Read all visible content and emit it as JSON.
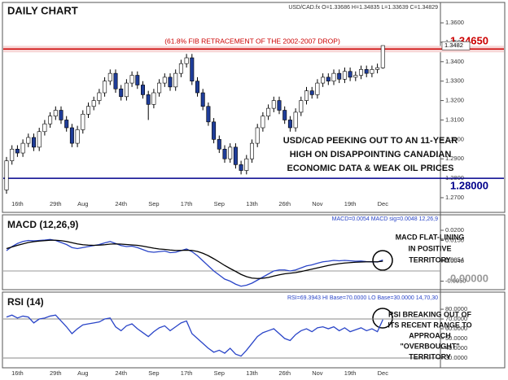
{
  "chart_data": [
    {
      "type": "candlestick",
      "title": "DAILY CHART",
      "header": "USD/CAD.fx O=1.33686 H=1.34835 L=1.33639 C=1.34829",
      "categories": [
        null,
        null,
        "16th",
        null,
        null,
        null,
        null,
        null,
        null,
        "29th",
        null,
        null,
        null,
        null,
        "Aug",
        null,
        null,
        null,
        null,
        null,
        null,
        "24th",
        null,
        null,
        null,
        null,
        null,
        "Sep",
        null,
        null,
        null,
        null,
        null,
        "17th",
        null,
        null,
        null,
        null,
        null,
        "Sep",
        null,
        null,
        null,
        null,
        null,
        "13th",
        null,
        null,
        null,
        null,
        null,
        "26th",
        null,
        null,
        null,
        null,
        null,
        "Nov",
        null,
        null,
        null,
        null,
        null,
        "19th",
        null,
        null,
        null,
        null,
        null,
        "Dec"
      ],
      "open": [
        1.274,
        1.289,
        1.295,
        1.293,
        1.298,
        1.301,
        1.296,
        1.304,
        1.308,
        1.312,
        1.315,
        1.31,
        1.306,
        1.298,
        1.305,
        1.313,
        1.317,
        1.32,
        1.324,
        1.33,
        1.334,
        1.326,
        1.322,
        1.329,
        1.333,
        1.328,
        1.323,
        1.318,
        1.324,
        1.329,
        1.332,
        1.327,
        1.334,
        1.339,
        1.342,
        1.33,
        1.324,
        1.317,
        1.309,
        1.3,
        1.295,
        1.29,
        1.296,
        1.287,
        1.284,
        1.29,
        1.298,
        1.306,
        1.312,
        1.316,
        1.32,
        1.315,
        1.31,
        1.306,
        1.314,
        1.32,
        1.325,
        1.323,
        1.329,
        1.332,
        1.33,
        1.334,
        1.331,
        1.335,
        1.332,
        1.333,
        1.336,
        1.334,
        1.336,
        1.33686
      ],
      "high": [
        1.291,
        1.297,
        1.297,
        1.3,
        1.303,
        1.303,
        1.306,
        1.31,
        1.314,
        1.317,
        1.317,
        1.312,
        1.308,
        1.307,
        1.315,
        1.319,
        1.322,
        1.326,
        1.332,
        1.336,
        1.336,
        1.328,
        1.331,
        1.335,
        1.335,
        1.33,
        1.325,
        1.326,
        1.331,
        1.334,
        1.334,
        1.336,
        1.341,
        1.344,
        1.344,
        1.332,
        1.326,
        1.319,
        1.311,
        1.302,
        1.297,
        1.298,
        1.298,
        1.289,
        1.292,
        1.3,
        1.308,
        1.314,
        1.318,
        1.322,
        1.322,
        1.317,
        1.312,
        1.316,
        1.322,
        1.327,
        1.327,
        1.331,
        1.334,
        1.334,
        1.336,
        1.336,
        1.337,
        1.337,
        1.335,
        1.338,
        1.338,
        1.338,
        1.339,
        1.34835
      ],
      "low": [
        1.272,
        1.287,
        1.291,
        1.291,
        1.296,
        1.294,
        1.294,
        1.302,
        1.306,
        1.31,
        1.308,
        1.304,
        1.296,
        1.296,
        1.303,
        1.311,
        1.315,
        1.318,
        1.322,
        1.328,
        1.324,
        1.32,
        1.32,
        1.327,
        1.326,
        1.321,
        1.31,
        1.316,
        1.322,
        1.327,
        1.325,
        1.325,
        1.332,
        1.337,
        1.328,
        1.322,
        1.315,
        1.307,
        1.298,
        1.293,
        1.288,
        1.288,
        1.285,
        1.282,
        1.282,
        1.288,
        1.296,
        1.304,
        1.31,
        1.314,
        1.313,
        1.308,
        1.304,
        1.304,
        1.312,
        1.318,
        1.321,
        1.321,
        1.327,
        1.328,
        1.328,
        1.329,
        1.329,
        1.33,
        1.33,
        1.331,
        1.332,
        1.332,
        1.334,
        1.33639
      ],
      "close": [
        1.289,
        1.295,
        1.293,
        1.298,
        1.301,
        1.296,
        1.304,
        1.308,
        1.312,
        1.315,
        1.31,
        1.306,
        1.298,
        1.305,
        1.313,
        1.317,
        1.32,
        1.324,
        1.33,
        1.334,
        1.326,
        1.322,
        1.329,
        1.333,
        1.328,
        1.323,
        1.318,
        1.324,
        1.329,
        1.332,
        1.327,
        1.334,
        1.339,
        1.342,
        1.33,
        1.324,
        1.317,
        1.309,
        1.3,
        1.295,
        1.29,
        1.296,
        1.287,
        1.284,
        1.29,
        1.298,
        1.306,
        1.312,
        1.316,
        1.32,
        1.315,
        1.31,
        1.306,
        1.314,
        1.32,
        1.325,
        1.323,
        1.329,
        1.332,
        1.33,
        1.334,
        1.331,
        1.335,
        1.332,
        1.333,
        1.336,
        1.334,
        1.336,
        1.3369,
        1.34829
      ],
      "up_color": "#ffffff",
      "down_color": "#1f3d99",
      "ylim": [
        1.2637,
        1.3684
      ],
      "yticks": [
        {
          "value": 1.27,
          "label": "1.2700"
        },
        {
          "value": 1.28,
          "label": "1.2800"
        },
        {
          "value": 1.29,
          "label": "1.2900"
        },
        {
          "value": 1.3,
          "label": "1.3000"
        },
        {
          "value": 1.31,
          "label": "1.3100"
        },
        {
          "value": 1.32,
          "label": "1.3200"
        },
        {
          "value": 1.33,
          "label": "1.3300"
        },
        {
          "value": 1.34,
          "label": "1.3400"
        },
        {
          "value": 1.35,
          "label": "1.3500"
        },
        {
          "value": 1.36,
          "label": "1.3600"
        }
      ],
      "price_marker": {
        "value": 1.3482,
        "label": "1.3482"
      },
      "levels": [
        {
          "value": 1.3465,
          "label": "1.34650",
          "color": "#cc0000",
          "note": "(61.8% FIB RETRACEMENT OF THE 2002-2007 DROP)"
        },
        {
          "value": 1.28,
          "label": "1.28000",
          "color": "#00008b"
        }
      ],
      "annotation": [
        "USD/CAD PEEKING OUT TO AN 11-YEAR",
        "HIGH ON DISAPPOINTING CANADIAN",
        "ECONOMIC DATA & WEAK OIL PRICES"
      ]
    },
    {
      "type": "line",
      "title": "MACD (12,26,9)",
      "header": "MACD=0.0054 MACD sig=0.0048   12,26,9",
      "series": [
        {
          "name": "MACD",
          "color": "#2a45c8",
          "values": [
            0.01,
            0.012,
            0.0135,
            0.0145,
            0.015,
            0.0148,
            0.015,
            0.0152,
            0.0155,
            0.015,
            0.014,
            0.013,
            0.0115,
            0.011,
            0.0115,
            0.012,
            0.0125,
            0.013,
            0.0138,
            0.0145,
            0.0135,
            0.0125,
            0.012,
            0.0122,
            0.0115,
            0.0105,
            0.0095,
            0.0092,
            0.0095,
            0.0098,
            0.009,
            0.0092,
            0.01,
            0.0108,
            0.0095,
            0.0075,
            0.005,
            0.0025,
            0.0,
            -0.002,
            -0.004,
            -0.005,
            -0.0065,
            -0.0075,
            -0.007,
            -0.006,
            -0.0045,
            -0.003,
            -0.0015,
            0.0,
            0.0005,
            0.0005,
            0.0,
            0.0005,
            0.0015,
            0.0025,
            0.003,
            0.0038,
            0.0045,
            0.0048,
            0.0052,
            0.005,
            0.0052,
            0.005,
            0.0048,
            0.0049,
            0.0046,
            0.0045,
            0.0044,
            0.0054
          ]
        },
        {
          "name": "MACD sig",
          "color": "#000000",
          "values": [
            0.011,
            0.0118,
            0.0126,
            0.0133,
            0.014,
            0.0144,
            0.0147,
            0.0149,
            0.0151,
            0.0151,
            0.0149,
            0.0145,
            0.0139,
            0.0133,
            0.0129,
            0.0127,
            0.0126,
            0.0127,
            0.0129,
            0.0132,
            0.0133,
            0.0132,
            0.013,
            0.0128,
            0.0126,
            0.0122,
            0.0117,
            0.0112,
            0.0108,
            0.0106,
            0.0103,
            0.0101,
            0.0101,
            0.0102,
            0.0101,
            0.0096,
            0.0087,
            0.0075,
            0.006,
            0.0044,
            0.0027,
            0.0012,
            -0.0002,
            -0.0017,
            -0.0028,
            -0.0035,
            -0.0037,
            -0.0036,
            -0.0032,
            -0.0025,
            -0.0019,
            -0.0014,
            -0.0011,
            -0.0008,
            -0.0003,
            0.0003,
            0.0009,
            0.0015,
            0.0021,
            0.0027,
            0.0032,
            0.0036,
            0.0039,
            0.0041,
            0.0043,
            0.0044,
            0.0045,
            0.0045,
            0.0045,
            0.0048
          ]
        }
      ],
      "ylim": [
        -0.0084,
        0.026
      ],
      "yticks": [
        {
          "value": 0.02,
          "label": "0.0200"
        },
        {
          "value": 0.015,
          "label": "0.0150"
        },
        {
          "value": 0.0054,
          "label": "0.0054"
        },
        {
          "value": 0.0048,
          "label": "0.0048"
        },
        {
          "value": -0.005,
          "label": "-0.0050"
        }
      ],
      "levels": [
        {
          "value": 0,
          "label": "0.00000",
          "color": "#999999"
        }
      ],
      "annotation": [
        "MACD FLAT-LINING",
        "IN POSITIVE",
        "TERRITORY"
      ]
    },
    {
      "type": "line",
      "title": "RSI (14)",
      "header": "RSI=69.3943 HI Base=70.0000 LO Base=30.0000   14,70,30",
      "series": [
        {
          "name": "RSI",
          "color": "#2a45c8",
          "values": [
            72,
            74,
            71,
            73,
            72,
            66,
            70,
            71,
            73,
            74,
            68,
            62,
            55,
            60,
            64,
            65,
            66,
            67,
            70,
            71,
            62,
            58,
            63,
            65,
            60,
            56,
            52,
            57,
            61,
            63,
            58,
            62,
            66,
            68,
            55,
            50,
            45,
            40,
            36,
            38,
            35,
            40,
            34,
            32,
            38,
            45,
            52,
            56,
            58,
            60,
            55,
            50,
            48,
            54,
            58,
            60,
            57,
            61,
            62,
            60,
            62,
            58,
            61,
            57,
            59,
            61,
            58,
            60,
            57,
            69.3943
          ]
        }
      ],
      "ylim": [
        21.7,
        91.7
      ],
      "yticks": [
        {
          "value": 80,
          "label": "80.0000"
        },
        {
          "value": 70,
          "label": "70.0000"
        },
        {
          "value": 60,
          "label": "60.0000"
        },
        {
          "value": 50,
          "label": "50.0000"
        },
        {
          "value": 40,
          "label": "40.0000"
        },
        {
          "value": 30,
          "label": "30.0000"
        }
      ],
      "levels": [
        {
          "value": 70,
          "color": "#888888"
        },
        {
          "value": 30,
          "color": "#888888"
        }
      ],
      "annotation": [
        "RSI BREAKING OUT OF",
        "ITS RECENT RANGE TO",
        "APPROACH",
        "\"OVERBOUGHT\"",
        "TERRITORY"
      ]
    }
  ]
}
